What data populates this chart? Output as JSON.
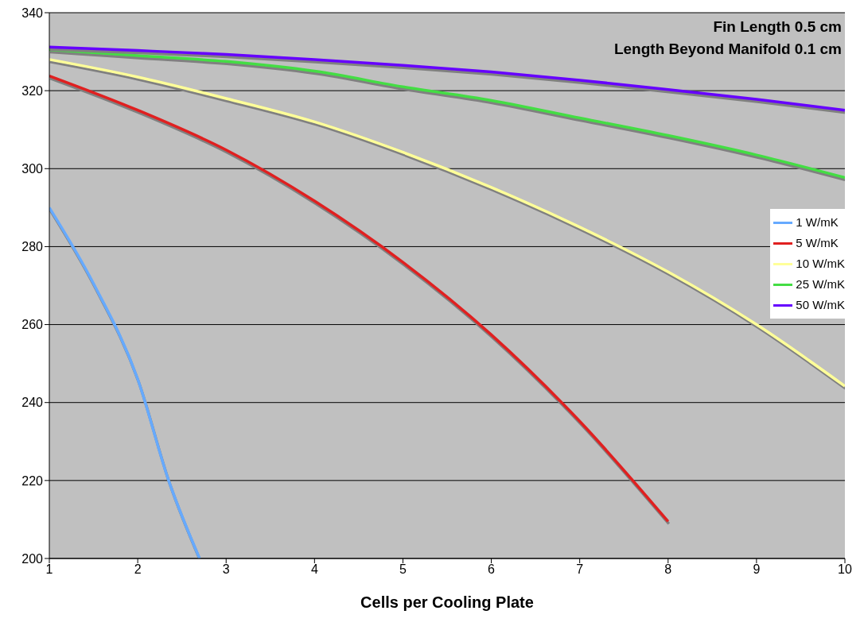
{
  "chart_data": {
    "type": "line",
    "xlabel": "Cells per Cooling Plate",
    "annotations": [
      "Fin Length 0.5 cm",
      "Length Beyond Manifold 0.1 cm"
    ],
    "xlim": [
      1,
      10
    ],
    "xticks": [
      1,
      2,
      3,
      4,
      5,
      6,
      7,
      8,
      9,
      10
    ],
    "ylim": [
      200,
      340
    ],
    "yticks": [
      200,
      220,
      240,
      260,
      280,
      300,
      320,
      340
    ],
    "grid": "y",
    "legend": "right",
    "marker": "none",
    "line_style": "solid",
    "series": [
      {
        "name": "1 W/mK",
        "color": "#66aaff",
        "x": [
          1,
          1.5,
          2,
          2.35,
          2.7
        ],
        "values": [
          290,
          270.5,
          246,
          220,
          200
        ]
      },
      {
        "name": "5 W/mK",
        "color": "#e02020",
        "x": [
          1,
          2,
          3,
          4,
          5,
          6,
          7,
          8
        ],
        "values": [
          323.8,
          315,
          304.8,
          291.7,
          276,
          257.4,
          235.2,
          209.5
        ]
      },
      {
        "name": "10 W/mK",
        "color": "#ffff99",
        "x": [
          1,
          2,
          3,
          4,
          5,
          6,
          7,
          8,
          9,
          10
        ],
        "values": [
          328,
          323.5,
          318,
          312,
          304.2,
          295.2,
          285,
          273.5,
          260,
          244.2
        ]
      },
      {
        "name": "25 W/mK",
        "color": "#44dd44",
        "x": [
          1,
          2,
          3,
          4,
          5,
          6,
          7,
          8,
          9,
          10
        ],
        "values": [
          330.5,
          329,
          327.5,
          325,
          321,
          317.5,
          313,
          308.5,
          303.5,
          297.7
        ]
      },
      {
        "name": "50 W/mK",
        "color": "#6600ff",
        "x": [
          1,
          2,
          3,
          4,
          5,
          6,
          7,
          8,
          9,
          10
        ],
        "values": [
          331.2,
          330.3,
          329.3,
          328,
          326.5,
          324.8,
          322.7,
          320.3,
          317.8,
          315
        ]
      }
    ]
  }
}
